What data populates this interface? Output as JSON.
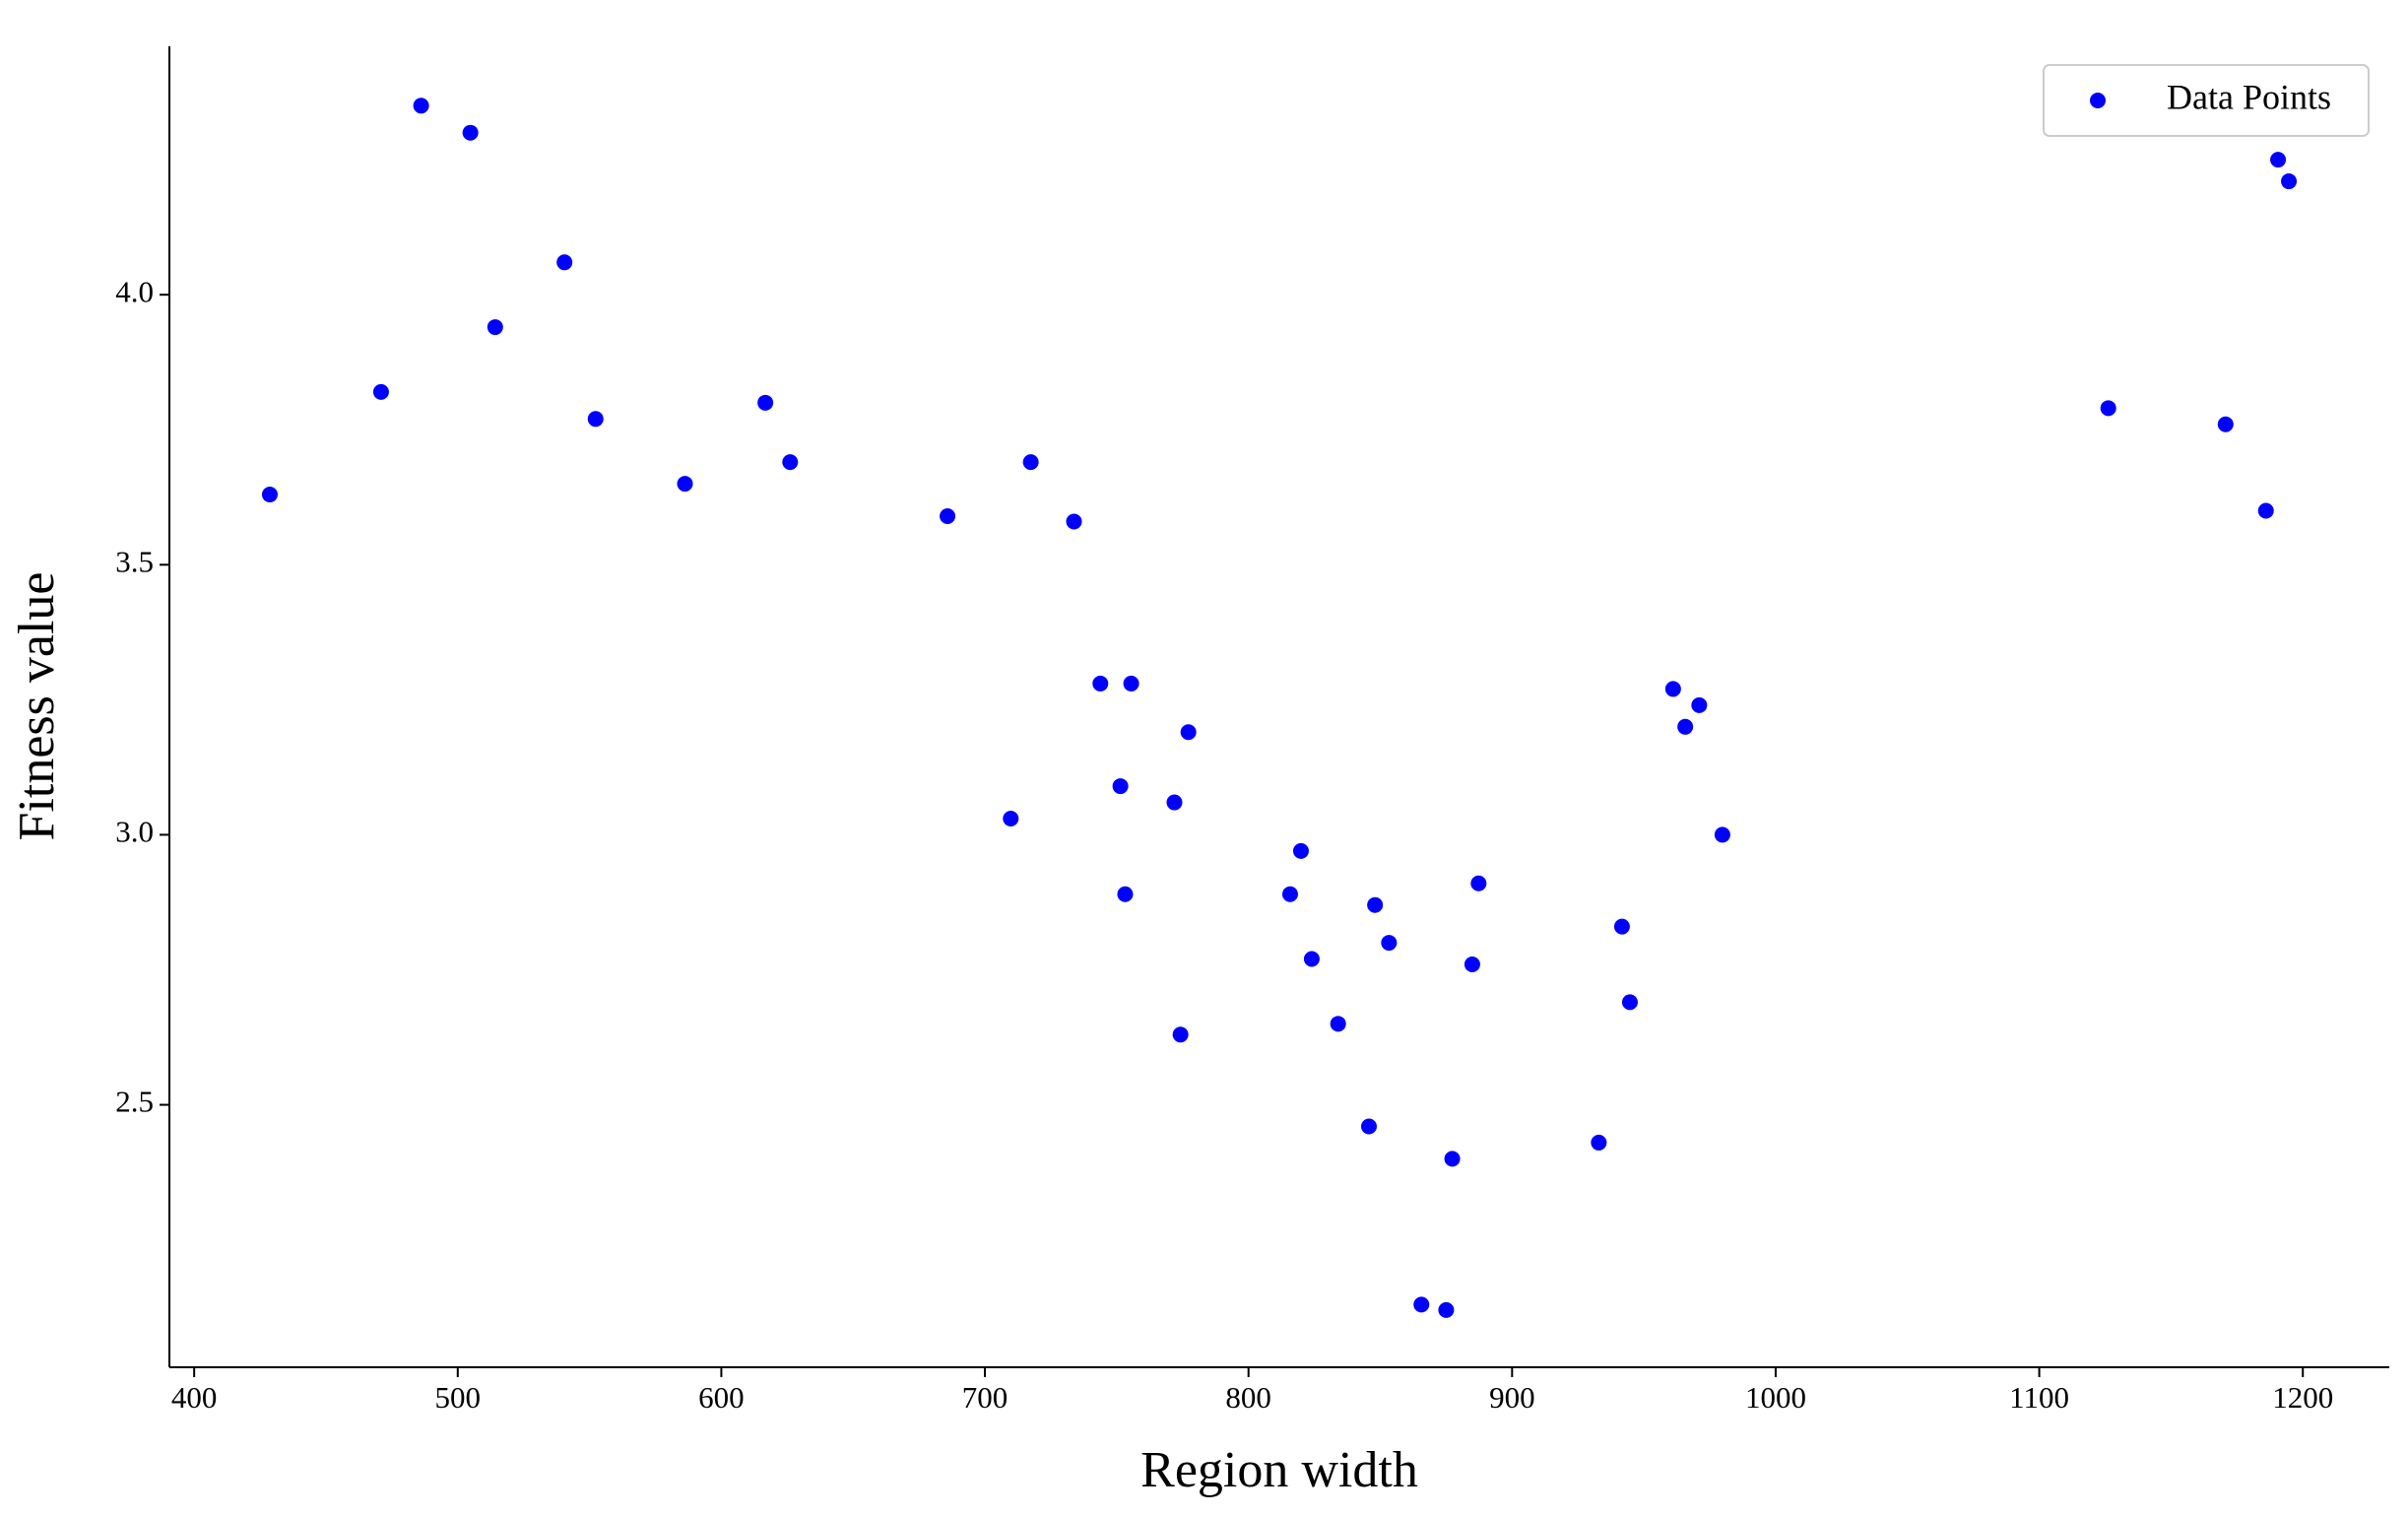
{
  "chart_data": {
    "type": "scatter",
    "xlabel": "Region width",
    "ylabel": "Fitness value",
    "color": "#0000ff",
    "legend": "upper right",
    "series": [
      {
        "name": "Data Points",
        "color": "#0000ff",
        "x": [
          428.7,
          470.9,
          486.1,
          504.8,
          514.2,
          540.5,
          552.3,
          586.2,
          616.7,
          626.1,
          685.8,
          709.8,
          717.4,
          733.8,
          743.8,
          755.5,
          751.4,
          753.2,
          771.9,
          777.2,
          774.2,
          815.8,
          819.9,
          824.0,
          834.0,
          848.0,
          853.3,
          845.7,
          865.6,
          875.0,
          877.3,
          884.9,
          887.3,
          932.9,
          941.7,
          944.7,
          961.1,
          965.7,
          971.0,
          979.8,
          1126.2,
          1170.7,
          1186.0,
          1190.6,
          1194.7
        ],
        "values": [
          3.63,
          3.82,
          4.35,
          4.3,
          3.94,
          4.06,
          3.77,
          3.65,
          3.8,
          3.69,
          3.59,
          3.03,
          3.69,
          3.58,
          3.28,
          3.28,
          3.09,
          2.89,
          3.06,
          3.19,
          2.63,
          2.89,
          2.97,
          2.77,
          2.65,
          2.87,
          2.8,
          2.46,
          2.13,
          2.12,
          2.4,
          2.76,
          2.91,
          2.43,
          2.83,
          2.69,
          3.27,
          3.2,
          3.24,
          3.0,
          3.79,
          3.76,
          3.6,
          4.25,
          4.21
        ]
      }
    ],
    "xlim": [
      390.6,
      1232.8
    ],
    "ylim": [
      2.014,
      4.46
    ],
    "xticks": [
      400,
      500,
      600,
      700,
      800,
      900,
      1000,
      1100,
      1200
    ],
    "yticks": [
      2.5,
      {
        "value": 3.0,
        "label": "3.0"
      },
      3.5,
      {
        "value": 4.0,
        "label": "4.0"
      }
    ]
  }
}
